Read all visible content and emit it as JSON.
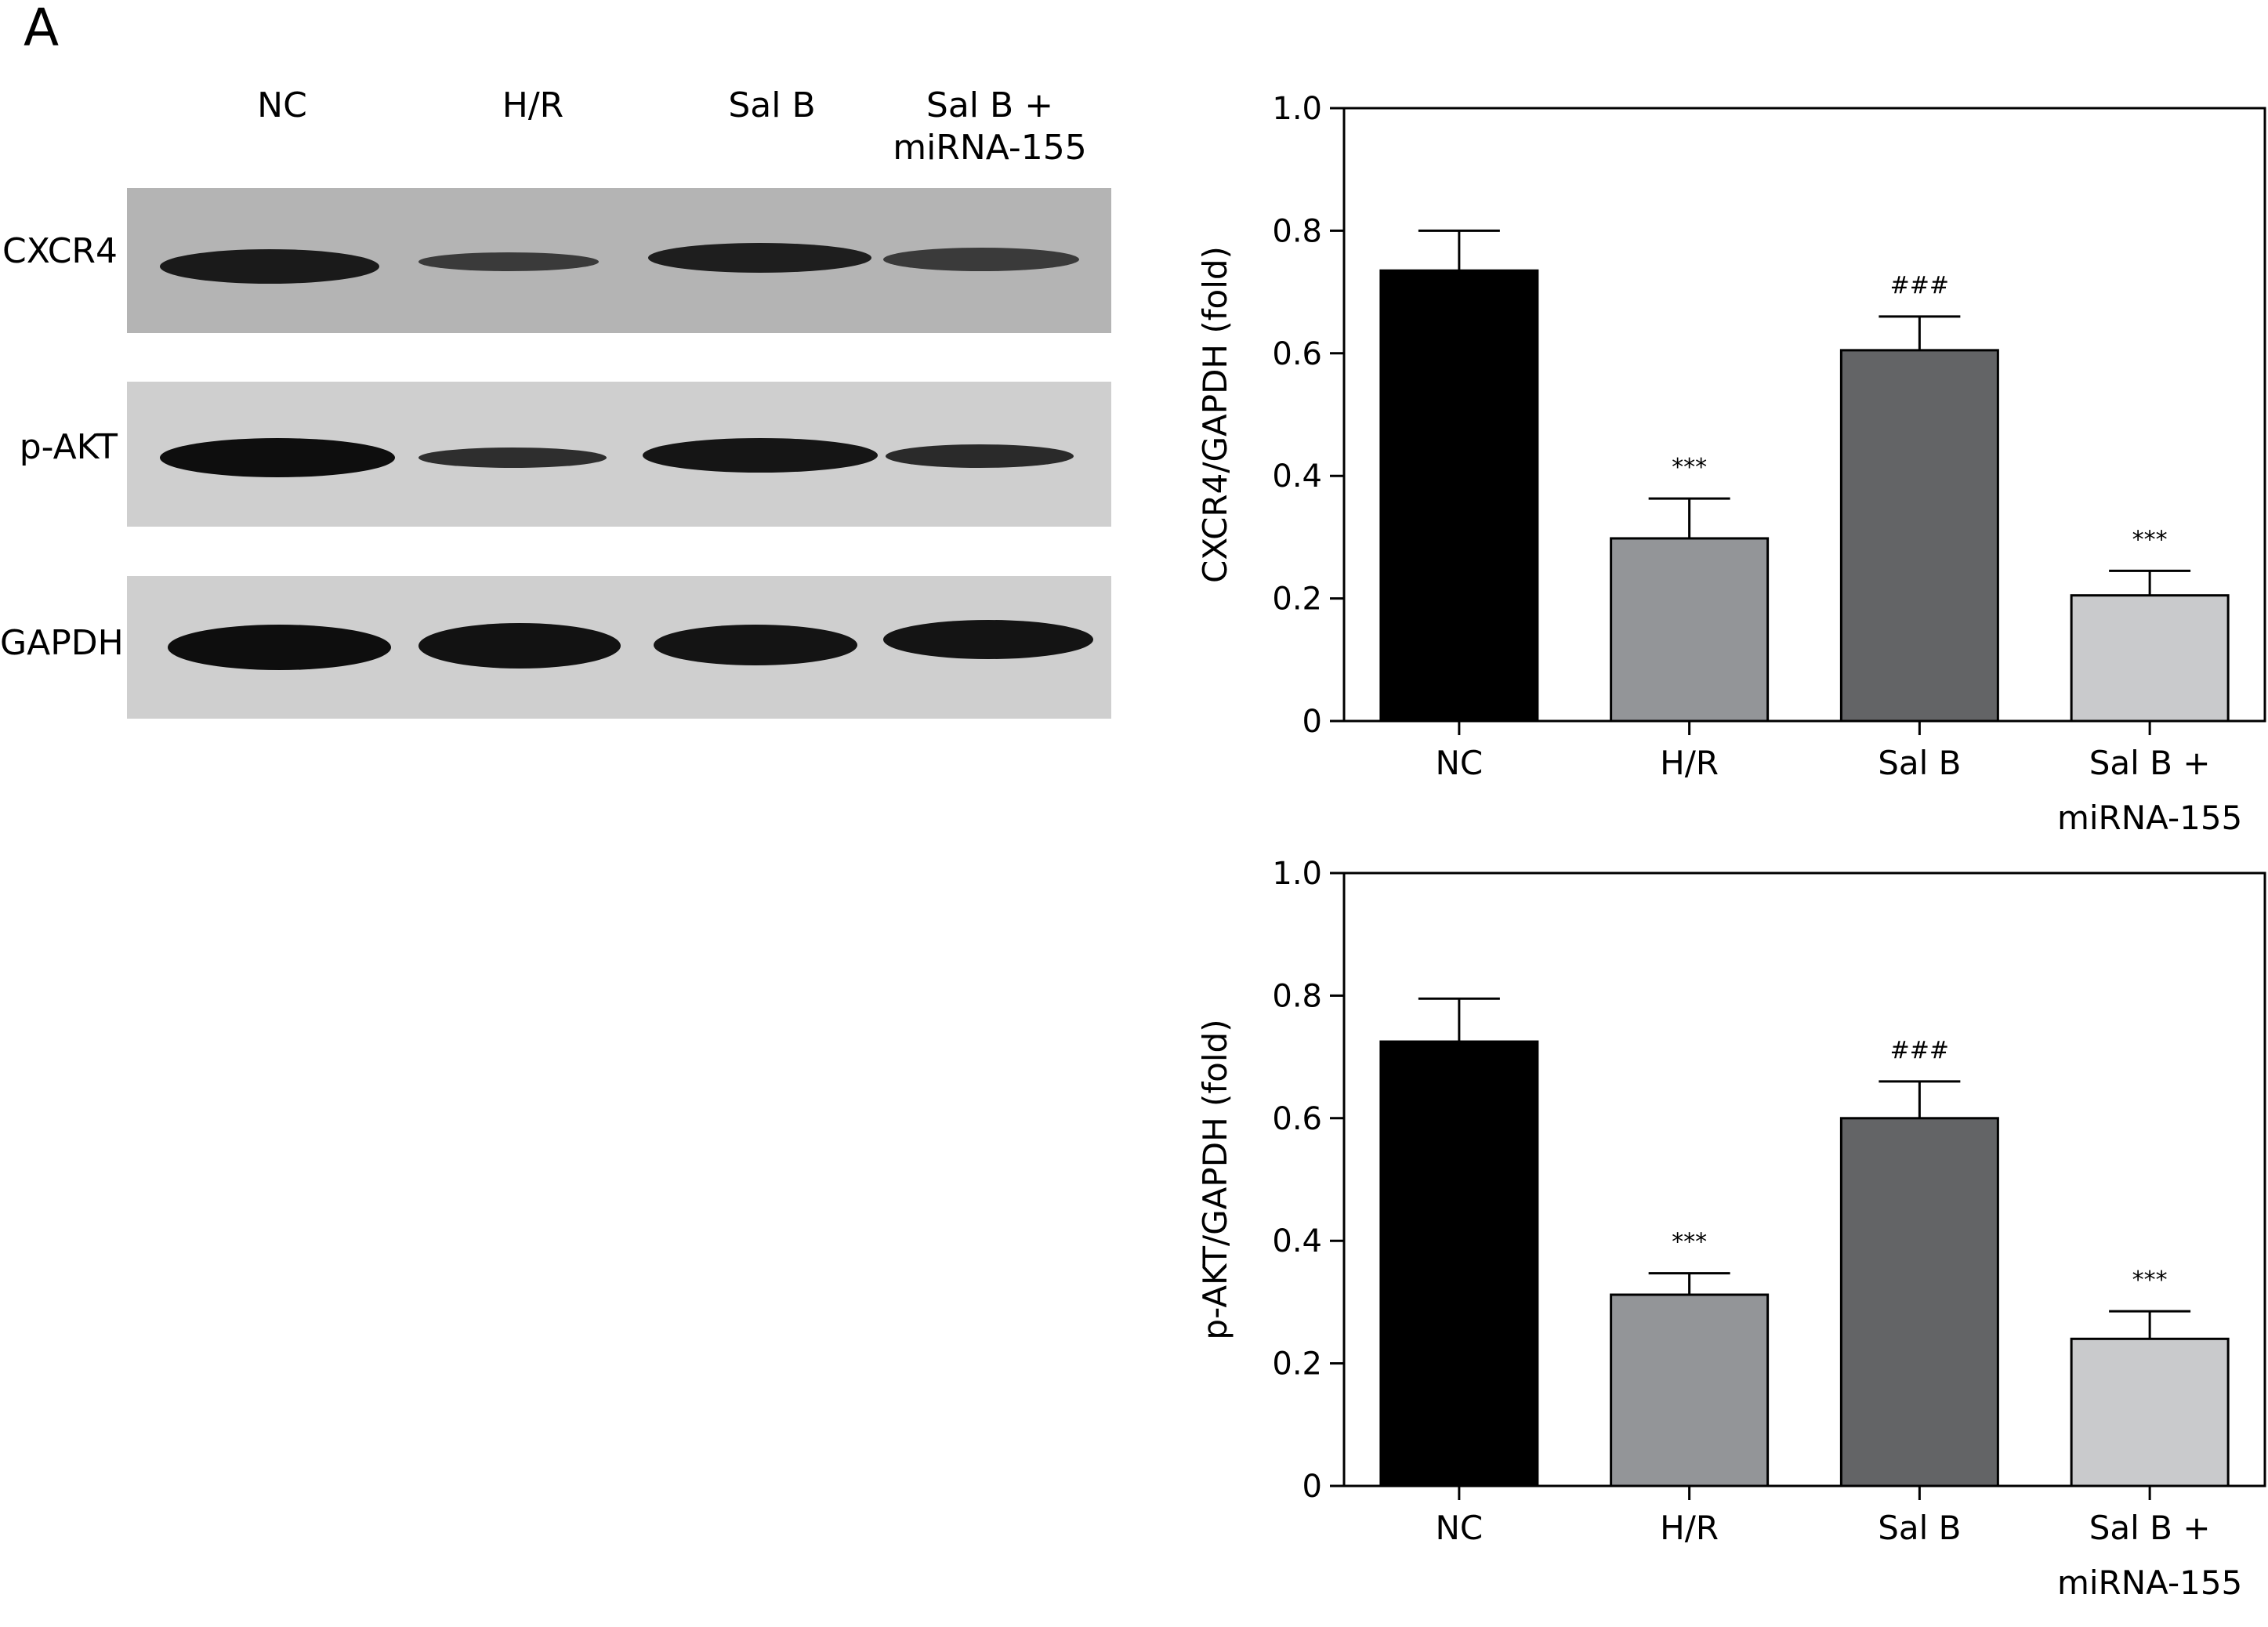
{
  "panel_label": "A",
  "blot": {
    "lanes": [
      {
        "line1": "NC",
        "line2": ""
      },
      {
        "line1": "H/R",
        "line2": ""
      },
      {
        "line1": "Sal B",
        "line2": ""
      },
      {
        "line1": "Sal B +",
        "line2": "miRNA-155"
      }
    ],
    "rows": [
      "CXCR4",
      "p-AKT",
      "GAPDH"
    ]
  },
  "chart_data": [
    {
      "type": "bar",
      "categories": [
        [
          "NC"
        ],
        [
          "H/R"
        ],
        [
          "Sal B"
        ],
        [
          "Sal B +",
          "miRNA-155"
        ]
      ],
      "values": [
        0.735,
        0.298,
        0.605,
        0.205
      ],
      "errors": [
        0.065,
        0.065,
        0.055,
        0.04
      ],
      "annotations": [
        "",
        "***",
        "###",
        "***"
      ],
      "ylabel": "CXCR4/GAPDH (fold)",
      "ylim": [
        0,
        1.0
      ],
      "yticks": [
        "0",
        "0.2",
        "0.4",
        "0.6",
        "0.8",
        "1.0"
      ],
      "colors": [
        "#000000",
        "#939598",
        "#636466",
        "#c9cacc"
      ],
      "grid": false
    },
    {
      "type": "bar",
      "categories": [
        [
          "NC"
        ],
        [
          "H/R"
        ],
        [
          "Sal B"
        ],
        [
          "Sal B +",
          "miRNA-155"
        ]
      ],
      "values": [
        0.725,
        0.312,
        0.6,
        0.24
      ],
      "errors": [
        0.07,
        0.035,
        0.06,
        0.045
      ],
      "annotations": [
        "",
        "***",
        "###",
        "***"
      ],
      "ylabel": "p-AKT/GAPDH (fold)",
      "ylim": [
        0,
        1.0
      ],
      "yticks": [
        "0",
        "0.2",
        "0.4",
        "0.6",
        "0.8",
        "1.0"
      ],
      "colors": [
        "#000000",
        "#939598",
        "#636466",
        "#c9cacc"
      ],
      "grid": false
    }
  ]
}
